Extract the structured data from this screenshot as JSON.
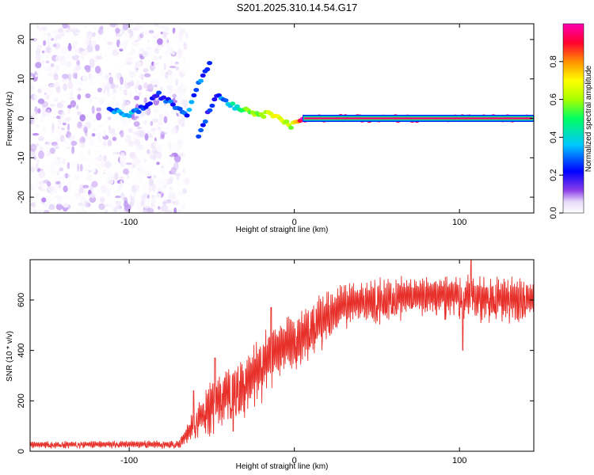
{
  "title": "S201.2025.310.14.54.G17",
  "chart_data": [
    {
      "type": "heatmap",
      "name": "spectrogram",
      "xlabel": "Height of straight line (km)",
      "ylabel": "Frequency (Hz)",
      "xlim": [
        -160,
        145
      ],
      "ylim": [
        -24,
        24
      ],
      "xticks": [
        -100,
        0,
        100
      ],
      "yticks": [
        -20,
        -10,
        0,
        10,
        20
      ],
      "colorbar": {
        "label": "Normalized spectral amplitude",
        "range": [
          0,
          1
        ],
        "ticks": [
          0.0,
          0.2,
          0.4,
          0.6,
          0.8
        ],
        "colors": [
          "#ffffff",
          "#e6d8f8",
          "#8a3ee8",
          "#0000ff",
          "#00c8ff",
          "#00ff60",
          "#a8ff00",
          "#ffff00",
          "#ff9000",
          "#ff0030",
          "#ff00b0"
        ]
      },
      "ridge": {
        "description": "dominant frequency track",
        "points": [
          {
            "x": -112,
            "y": 2,
            "a": 0.35
          },
          {
            "x": -100,
            "y": 1,
            "a": 0.4
          },
          {
            "x": -90,
            "y": 3,
            "a": 0.3
          },
          {
            "x": -82,
            "y": 6,
            "a": 0.3
          },
          {
            "x": -65,
            "y": 1,
            "a": 0.35
          },
          {
            "x": -58,
            "y": 9,
            "a": 0.35
          },
          {
            "x": -50,
            "y": 15,
            "a": 0.3
          },
          {
            "x": -58,
            "y": -4,
            "a": 0.3
          },
          {
            "x": -47,
            "y": 6,
            "a": 0.3
          },
          {
            "x": -36,
            "y": 3,
            "a": 0.45
          },
          {
            "x": -28,
            "y": 2,
            "a": 0.55
          },
          {
            "x": -20,
            "y": 1,
            "a": 0.6
          },
          {
            "x": -10,
            "y": 1,
            "a": 0.7
          },
          {
            "x": -2,
            "y": -2,
            "a": 0.6
          },
          {
            "x": 5,
            "y": 0,
            "a": 0.95
          },
          {
            "x": 145,
            "y": 0,
            "a": 0.95
          }
        ]
      }
    },
    {
      "type": "line",
      "name": "snr",
      "xlabel": "Height of straight line (km)",
      "ylabel": "SNR (10 * v/v)",
      "xlim": [
        -160,
        145
      ],
      "ylim": [
        0,
        760
      ],
      "xticks": [
        -100,
        0,
        100
      ],
      "yticks": [
        0,
        200,
        400,
        600
      ],
      "color": "#e8302a",
      "envelope": {
        "x": [
          -160,
          -70,
          -60,
          -50,
          -40,
          -30,
          -20,
          -10,
          0,
          10,
          20,
          30,
          50,
          70,
          100,
          120,
          145
        ],
        "upper": [
          40,
          45,
          180,
          300,
          360,
          400,
          470,
          530,
          560,
          600,
          640,
          670,
          690,
          700,
          710,
          700,
          690
        ],
        "lower": [
          10,
          10,
          40,
          60,
          90,
          120,
          180,
          250,
          300,
          350,
          420,
          480,
          500,
          520,
          520,
          500,
          500
        ]
      },
      "spikes": [
        {
          "x": -61,
          "y": 240
        },
        {
          "x": -48,
          "y": 370
        },
        {
          "x": -14,
          "y": 570
        },
        {
          "x": -37,
          "y": 80
        },
        {
          "x": 102,
          "y": 400
        },
        {
          "x": 107,
          "y": 760
        }
      ]
    }
  ]
}
